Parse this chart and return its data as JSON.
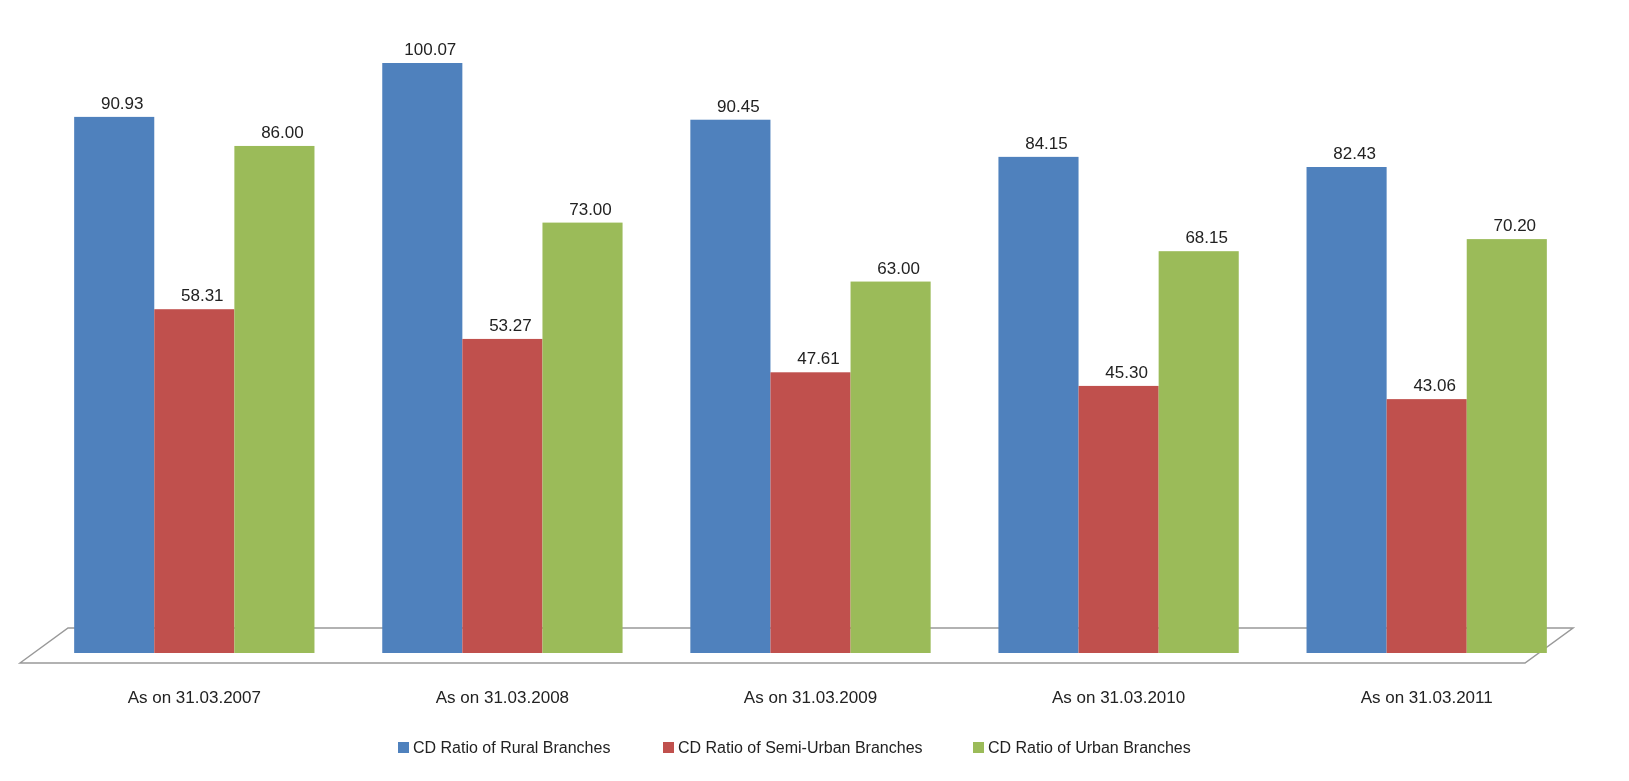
{
  "chart_data": {
    "type": "bar",
    "categories": [
      "As on 31.03.2007",
      "As on 31.03.2008",
      "As on 31.03.2009",
      "As on 31.03.2010",
      "As on 31.03.2011"
    ],
    "series": [
      {
        "name": "CD Ratio of Rural Branches",
        "color": "#4f81bd",
        "values": [
          90.93,
          100.07,
          90.45,
          84.15,
          82.43
        ],
        "value_labels": [
          "90.93",
          "100.07",
          "90.45",
          "84.15",
          "82.43"
        ]
      },
      {
        "name": "CD Ratio of Semi-Urban Branches",
        "color": "#c0504d",
        "values": [
          58.31,
          53.27,
          47.61,
          45.3,
          43.06
        ],
        "value_labels": [
          "58.31",
          "53.27",
          "47.61",
          "45.30",
          "43.06"
        ]
      },
      {
        "name": "CD Ratio of Urban Branches",
        "color": "#9bbb59",
        "values": [
          86.0,
          73.0,
          63.0,
          68.15,
          70.2
        ],
        "value_labels": [
          "86.00",
          "73.00",
          "63.00",
          "68.15",
          "70.20"
        ]
      }
    ],
    "legend": "bottom"
  }
}
